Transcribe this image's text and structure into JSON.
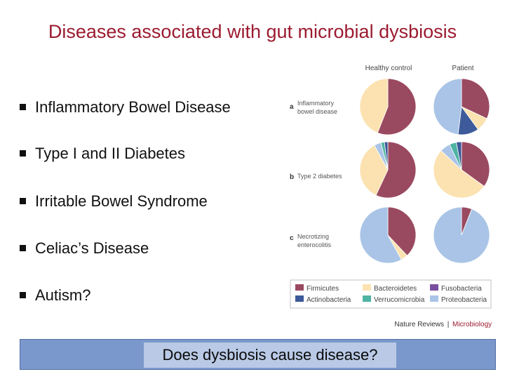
{
  "title": "Diseases associated with gut microbial dysbiosis",
  "bullets": [
    "Inflammatory Bowel Disease",
    "Type I and II Diabetes",
    "Irritable Bowel Syndrome",
    "Celiac’s Disease",
    "Autism?"
  ],
  "figure": {
    "col_headers": [
      "Healthy control",
      "Patient"
    ],
    "rows": [
      {
        "letter": "a",
        "label_lines": [
          "Inflammatory",
          "bowel disease"
        ]
      },
      {
        "letter": "b",
        "label_lines": [
          "Type 2 diabetes"
        ]
      },
      {
        "letter": "c",
        "label_lines": [
          "Necrotizing",
          "enterocolitis"
        ]
      }
    ],
    "legend": [
      {
        "name": "Firmicutes",
        "color": "#9a4a60"
      },
      {
        "name": "Bacteroidetes",
        "color": "#fbe2b0"
      },
      {
        "name": "Fusobacteria",
        "color": "#7a4fa0"
      },
      {
        "name": "Actinobacteria",
        "color": "#3d5a9a"
      },
      {
        "name": "Verrucomicrobia",
        "color": "#4fb3a3"
      },
      {
        "name": "Proteobacteria",
        "color": "#a9c4e6"
      }
    ],
    "pies": [
      {
        "row": "a",
        "group": "Healthy control",
        "slices": [
          {
            "phylum": "Firmicutes",
            "value": 0.56
          },
          {
            "phylum": "Bacteroidetes",
            "value": 0.44
          }
        ]
      },
      {
        "row": "a",
        "group": "Patient",
        "slices": [
          {
            "phylum": "Firmicutes",
            "value": 0.32
          },
          {
            "phylum": "Bacteroidetes",
            "value": 0.08
          },
          {
            "phylum": "Actinobacteria",
            "value": 0.12
          },
          {
            "phylum": "Proteobacteria",
            "value": 0.48
          }
        ]
      },
      {
        "row": "b",
        "group": "Healthy control",
        "slices": [
          {
            "phylum": "Firmicutes",
            "value": 0.57
          },
          {
            "phylum": "Bacteroidetes",
            "value": 0.35
          },
          {
            "phylum": "Proteobacteria",
            "value": 0.04
          },
          {
            "phylum": "Verrucomicrobia",
            "value": 0.02
          },
          {
            "phylum": "Actinobacteria",
            "value": 0.02
          }
        ]
      },
      {
        "row": "b",
        "group": "Patient",
        "slices": [
          {
            "phylum": "Firmicutes",
            "value": 0.35
          },
          {
            "phylum": "Bacteroidetes",
            "value": 0.52
          },
          {
            "phylum": "Proteobacteria",
            "value": 0.06
          },
          {
            "phylum": "Verrucomicrobia",
            "value": 0.04
          },
          {
            "phylum": "Actinobacteria",
            "value": 0.03
          }
        ]
      },
      {
        "row": "c",
        "group": "Healthy control",
        "slices": [
          {
            "phylum": "Firmicutes",
            "value": 0.38
          },
          {
            "phylum": "Bacteroidetes",
            "value": 0.04
          },
          {
            "phylum": "Proteobacteria",
            "value": 0.58
          }
        ]
      },
      {
        "row": "c",
        "group": "Patient",
        "slices": [
          {
            "phylum": "Firmicutes",
            "value": 0.06
          },
          {
            "phylum": "Proteobacteria",
            "value": 0.94
          }
        ]
      }
    ],
    "credit_left": "Nature Reviews",
    "credit_sep": "|",
    "credit_right": "Microbiology"
  },
  "question": "Does dysbiosis cause disease?"
}
